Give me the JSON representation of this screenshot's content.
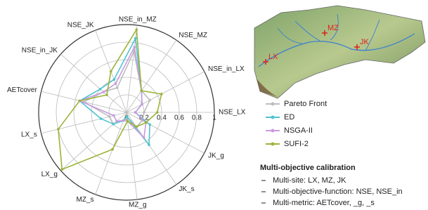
{
  "chart_data": {
    "type": "radar",
    "categories": [
      "NSE_LX",
      "NSE_in_LX",
      "NSE_MZ",
      "NSE_in_MZ",
      "NSE_JK",
      "NSE_in_JK",
      "AETcover",
      "LX_s",
      "LX_g",
      "MZ_s",
      "MZ_g",
      "JK_s",
      "JK_g"
    ],
    "rlim": [
      0,
      1
    ],
    "rticks": [
      0,
      0.2,
      0.4,
      0.6,
      0.8,
      1
    ],
    "grid": true,
    "series": [
      {
        "name": "Pareto Front",
        "color": "#bdbdbd",
        "values": [
          0.2,
          0.3,
          0.3,
          0.7,
          0.3,
          0.35,
          0.5,
          0.2,
          0.2,
          0.1,
          0.05,
          0.2,
          0.2
        ]
      },
      {
        "name": "ED",
        "color": "#4fc3d0",
        "values": [
          0.1,
          0.2,
          0.3,
          0.85,
          0.4,
          0.4,
          0.55,
          0.3,
          0.2,
          0.1,
          0.05,
          0.45,
          0.3
        ]
      },
      {
        "name": "NSGA-II",
        "color": "#c89be0",
        "values": [
          0.1,
          0.2,
          0.3,
          0.75,
          0.35,
          0.35,
          0.55,
          0.15,
          0.15,
          0.1,
          0.1,
          0.35,
          0.25
        ]
      },
      {
        "name": "SUFI-2",
        "color": "#9ab43a",
        "values": [
          0.35,
          0.45,
          0.3,
          0.95,
          0.5,
          0.3,
          0.55,
          0.8,
          0.98,
          0.45,
          0.1,
          0.2,
          0.25
        ]
      }
    ]
  },
  "map": {
    "labels": [
      "MZ",
      "JK",
      "LX"
    ]
  },
  "note": {
    "title": "Multi-objective calibration",
    "items": [
      "Multi-site: LX, MZ, JK",
      "Multi-objective-function: NSE, NSE_in",
      "Multi-metric: AETcover, _g, _s"
    ]
  }
}
